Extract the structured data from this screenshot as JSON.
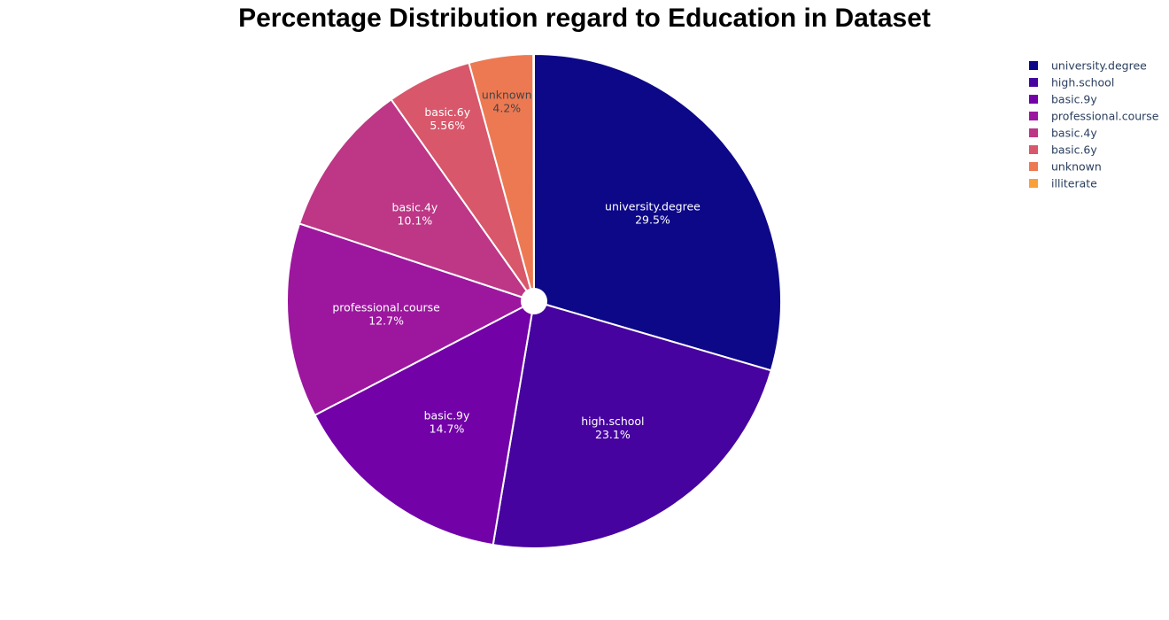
{
  "chart_data": {
    "type": "pie",
    "title": "Percentage Distribution regard to Education in Dataset",
    "categories": [
      "university.degree",
      "high.school",
      "basic.9y",
      "professional.course",
      "basic.4y",
      "basic.6y",
      "unknown",
      "illiterate"
    ],
    "values": [
      29.5,
      23.1,
      14.7,
      12.7,
      10.1,
      5.56,
      4.2,
      0.04
    ],
    "percent_labels": [
      "29.5%",
      "23.1%",
      "14.7%",
      "12.7%",
      "10.1%",
      "5.56%",
      "4.2%",
      ""
    ],
    "colors": [
      "#0d0887",
      "#46039f",
      "#7201a8",
      "#9c179e",
      "#bd3786",
      "#d8576b",
      "#ed7953",
      "#fb9f3a"
    ],
    "label_colors": [
      "#ffffff",
      "#ffffff",
      "#ffffff",
      "#ffffff",
      "#ffffff",
      "#ffffff",
      "#444444",
      "#444444"
    ],
    "legend_placement": "top-right",
    "hole": "small"
  }
}
